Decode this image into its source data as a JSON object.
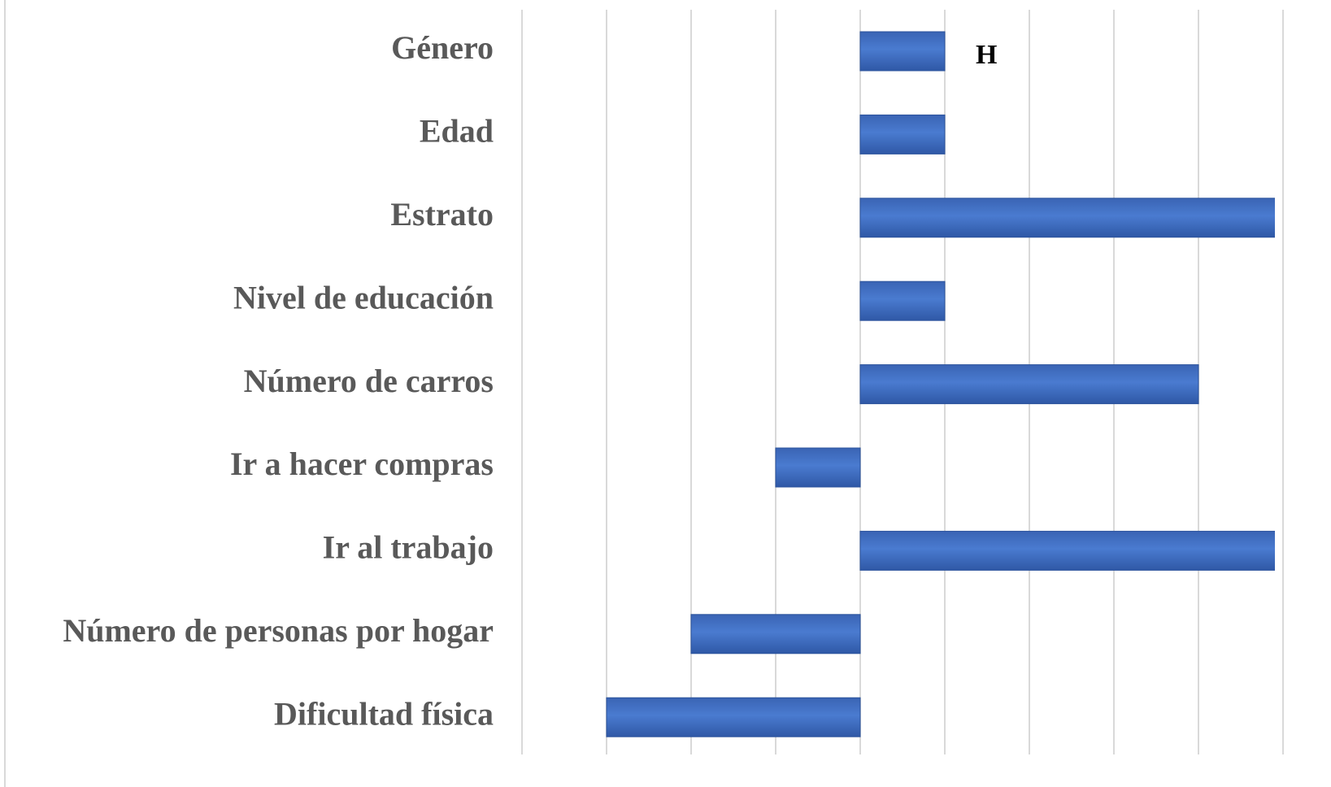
{
  "chart_data": {
    "type": "barh",
    "categories": [
      "Género",
      "Edad",
      "Estrato",
      "Nivel de educación",
      "Número de carros",
      "Ir a hacer compras",
      "Ir al trabajo",
      "Número de personas por hogar",
      "Dificultad física"
    ],
    "values": [
      1,
      1,
      5,
      1,
      4,
      -1,
      5,
      -2,
      -3
    ],
    "color": "#4472c4",
    "xlim": [
      -4,
      5.5
    ],
    "xticks": [
      -4,
      -3,
      -2,
      -1,
      0,
      1,
      2,
      3,
      4,
      5
    ],
    "grid": true,
    "annotation": "H"
  }
}
